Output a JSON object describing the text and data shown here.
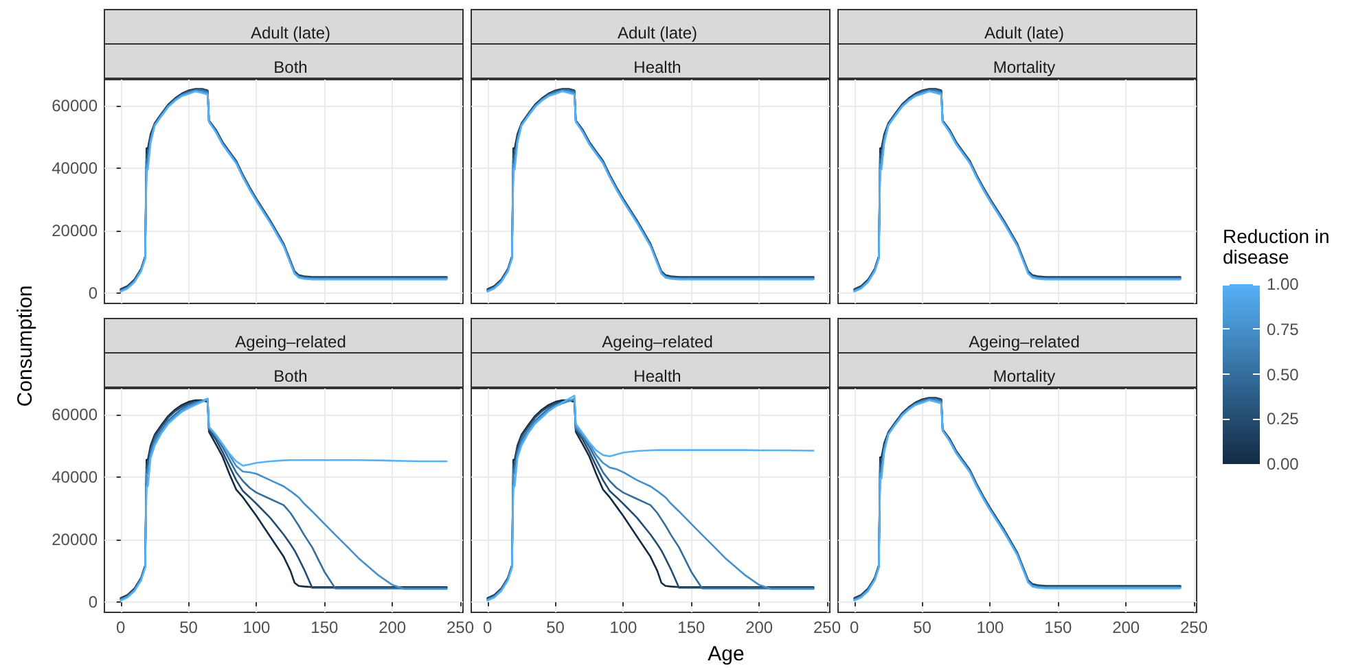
{
  "chart_data": [
    {
      "type": "line",
      "title": "Adult (late)",
      "subtitle": "Both",
      "x": [
        0,
        5,
        10,
        15,
        18,
        19,
        20,
        22,
        25,
        30,
        35,
        40,
        45,
        50,
        55,
        60,
        64,
        65,
        70,
        75,
        80,
        85,
        90,
        95,
        100,
        110,
        120,
        125,
        128,
        131,
        135,
        141,
        150,
        158,
        165,
        175,
        190,
        200,
        209,
        220,
        240
      ],
      "xlim": [
        -12,
        252
      ],
      "xticks": [
        0,
        50,
        100,
        150,
        200,
        250
      ],
      "ylim": [
        -3250,
        68250
      ],
      "yticks": [
        0,
        20000,
        40000,
        60000
      ],
      "grid": true,
      "tick_labels": "y",
      "ylabel": "Consumption",
      "series": [
        {
          "color": "#132B43",
          "values": [
            1300,
            2300,
            4300,
            7800,
            11800,
            46300,
            46300,
            50800,
            54300,
            57400,
            60300,
            62300,
            63800,
            64800,
            65300,
            65300,
            64800,
            55200,
            52300,
            48300,
            45300,
            42300,
            37800,
            33800,
            30100,
            23300,
            15800,
            10300,
            7000,
            5800,
            5400,
            5200,
            5200,
            5200,
            5200,
            5200,
            5200,
            5200,
            5200,
            5200,
            5200
          ]
        },
        {
          "color": "#244C70",
          "values": [
            1100,
            2100,
            4100,
            7600,
            11600,
            44600,
            44600,
            50100,
            54100,
            57200,
            60100,
            62100,
            63600,
            64600,
            65100,
            65100,
            64600,
            55000,
            52100,
            48100,
            45100,
            42100,
            37600,
            33600,
            29900,
            23100,
            15600,
            10100,
            6800,
            5600,
            5200,
            5000,
            5000,
            5000,
            5000,
            5000,
            5000,
            5000,
            5000,
            5000,
            5000
          ]
        },
        {
          "color": "#346E9D",
          "values": [
            900,
            1900,
            3900,
            7400,
            11400,
            42900,
            42900,
            49400,
            53900,
            57000,
            59900,
            61900,
            63400,
            64400,
            64900,
            64900,
            64400,
            54800,
            51900,
            47900,
            44900,
            41900,
            37400,
            33400,
            29700,
            22900,
            15400,
            9900,
            6600,
            5400,
            5000,
            4800,
            4800,
            4800,
            4800,
            4800,
            4800,
            4800,
            4800,
            4800,
            4800
          ]
        },
        {
          "color": "#4590CA",
          "values": [
            700,
            1700,
            3700,
            7200,
            11200,
            41200,
            41200,
            48700,
            53700,
            56800,
            59700,
            61700,
            63200,
            64000,
            64700,
            64400,
            63900,
            54800,
            51700,
            47700,
            44700,
            41700,
            37200,
            33200,
            29500,
            22700,
            15200,
            9700,
            6400,
            5200,
            4800,
            4600,
            4600,
            4600,
            4600,
            4600,
            4600,
            4600,
            4600,
            4600,
            4600
          ]
        },
        {
          "color": "#56B1F7",
          "values": [
            500,
            1500,
            3500,
            7000,
            11000,
            39500,
            39500,
            48000,
            53500,
            56600,
            59500,
            61500,
            63000,
            63700,
            64500,
            64000,
            63500,
            54800,
            51500,
            47500,
            44500,
            41500,
            37000,
            33000,
            29300,
            22500,
            15000,
            9500,
            6200,
            5000,
            4600,
            4400,
            4400,
            4400,
            4400,
            4400,
            4400,
            4400,
            4400,
            4400,
            4400
          ]
        }
      ]
    },
    {
      "type": "line",
      "title": "Adult (late)",
      "subtitle": "Health",
      "x": [
        0,
        5,
        10,
        15,
        18,
        19,
        20,
        22,
        25,
        30,
        35,
        40,
        45,
        50,
        55,
        60,
        64,
        65,
        70,
        75,
        80,
        85,
        90,
        95,
        100,
        110,
        120,
        125,
        128,
        131,
        135,
        141,
        150,
        158,
        165,
        175,
        190,
        200,
        209,
        220,
        240
      ],
      "xlim": [
        -12,
        252
      ],
      "xticks": [
        0,
        50,
        100,
        150,
        200,
        250
      ],
      "ylim": [
        -3250,
        68250
      ],
      "yticks": [
        0,
        20000,
        40000,
        60000
      ],
      "grid": true,
      "tick_labels": false,
      "series": [
        {
          "color": "#132B43",
          "values": [
            1300,
            2300,
            4300,
            7800,
            11800,
            46300,
            46300,
            50800,
            54300,
            57400,
            60300,
            62300,
            63800,
            64800,
            65300,
            65300,
            64800,
            55200,
            52300,
            48300,
            45300,
            42300,
            37800,
            33800,
            30100,
            23300,
            15800,
            10300,
            7000,
            5800,
            5400,
            5200,
            5200,
            5200,
            5200,
            5200,
            5200,
            5200,
            5200,
            5200,
            5200
          ]
        },
        {
          "color": "#244C70",
          "values": [
            1100,
            2100,
            4100,
            7600,
            11600,
            44600,
            44600,
            50100,
            54100,
            57200,
            60100,
            62100,
            63600,
            64600,
            65100,
            65100,
            64600,
            55000,
            52100,
            48100,
            45100,
            42100,
            37600,
            33600,
            29900,
            23100,
            15600,
            10100,
            6800,
            5600,
            5200,
            5000,
            5000,
            5000,
            5000,
            5000,
            5000,
            5000,
            5000,
            5000,
            5000
          ]
        },
        {
          "color": "#346E9D",
          "values": [
            900,
            1900,
            3900,
            7400,
            11400,
            42900,
            42900,
            49400,
            53900,
            57000,
            59900,
            61900,
            63400,
            64400,
            64900,
            64900,
            64400,
            54800,
            51900,
            47900,
            44900,
            41900,
            37400,
            33400,
            29700,
            22900,
            15400,
            9900,
            6600,
            5400,
            5000,
            4800,
            4800,
            4800,
            4800,
            4800,
            4800,
            4800,
            4800,
            4800,
            4800
          ]
        },
        {
          "color": "#4590CA",
          "values": [
            700,
            1700,
            3700,
            7200,
            11200,
            41200,
            41200,
            48700,
            53700,
            56800,
            59700,
            61700,
            63200,
            64000,
            64700,
            64400,
            63900,
            54800,
            51700,
            47700,
            44700,
            41700,
            37200,
            33200,
            29500,
            22700,
            15200,
            9700,
            6400,
            5200,
            4800,
            4600,
            4600,
            4600,
            4600,
            4600,
            4600,
            4600,
            4600,
            4600,
            4600
          ]
        },
        {
          "color": "#56B1F7",
          "values": [
            500,
            1500,
            3500,
            7000,
            11000,
            39500,
            39500,
            48000,
            53500,
            56600,
            59500,
            61500,
            63000,
            63700,
            64500,
            64000,
            63500,
            54800,
            51500,
            47500,
            44500,
            41500,
            37000,
            33000,
            29300,
            22500,
            15000,
            9500,
            6200,
            5000,
            4600,
            4400,
            4400,
            4400,
            4400,
            4400,
            4400,
            4400,
            4400,
            4400,
            4400
          ]
        }
      ]
    },
    {
      "type": "line",
      "title": "Adult (late)",
      "subtitle": "Mortality",
      "x": [
        0,
        5,
        10,
        15,
        18,
        19,
        20,
        22,
        25,
        30,
        35,
        40,
        45,
        50,
        55,
        60,
        64,
        65,
        70,
        75,
        80,
        85,
        90,
        95,
        100,
        110,
        120,
        125,
        128,
        131,
        135,
        141,
        150,
        158,
        165,
        175,
        190,
        200,
        209,
        220,
        240
      ],
      "xlim": [
        -12,
        252
      ],
      "xticks": [
        0,
        50,
        100,
        150,
        200,
        250
      ],
      "ylim": [
        -3250,
        68250
      ],
      "yticks": [
        0,
        20000,
        40000,
        60000
      ],
      "grid": true,
      "tick_labels": false,
      "clabel": "Reduction in disease",
      "clim": [
        0,
        1
      ],
      "cticks": [
        {
          "value": 0,
          "label": "0.00"
        },
        {
          "value": 0.25,
          "label": "0.25"
        },
        {
          "value": 0.5,
          "label": "0.50"
        },
        {
          "value": 0.75,
          "label": "0.75"
        },
        {
          "value": 1,
          "label": "1.00"
        }
      ],
      "series": [
        {
          "color": "#132B43",
          "values": [
            1300,
            2300,
            4300,
            7800,
            11800,
            46300,
            46300,
            50800,
            54300,
            57400,
            60300,
            62300,
            63800,
            64800,
            65300,
            65300,
            64800,
            55200,
            52300,
            48300,
            45300,
            42300,
            37800,
            33800,
            30100,
            23300,
            15800,
            10300,
            7000,
            5800,
            5400,
            5200,
            5200,
            5200,
            5200,
            5200,
            5200,
            5200,
            5200,
            5200,
            5200
          ]
        },
        {
          "color": "#244C70",
          "values": [
            1100,
            2100,
            4100,
            7600,
            11600,
            44600,
            44600,
            50100,
            54100,
            57200,
            60100,
            62100,
            63600,
            64600,
            65100,
            65100,
            64600,
            55000,
            52100,
            48100,
            45100,
            42100,
            37600,
            33600,
            29900,
            23100,
            15600,
            10100,
            6800,
            5600,
            5200,
            5000,
            5000,
            5000,
            5000,
            5000,
            5000,
            5000,
            5000,
            5000,
            5000
          ]
        },
        {
          "color": "#346E9D",
          "values": [
            900,
            1900,
            3900,
            7400,
            11400,
            42900,
            42900,
            49400,
            53900,
            57000,
            59900,
            61900,
            63400,
            64400,
            64900,
            64900,
            64400,
            54800,
            51900,
            47900,
            44900,
            41900,
            37400,
            33400,
            29700,
            22900,
            15400,
            9900,
            6600,
            5400,
            5000,
            4800,
            4800,
            4800,
            4800,
            4800,
            4800,
            4800,
            4800,
            4800,
            4800
          ]
        },
        {
          "color": "#4590CA",
          "values": [
            700,
            1700,
            3700,
            7200,
            11200,
            41200,
            41200,
            48700,
            53700,
            56800,
            59700,
            61700,
            63200,
            64000,
            64700,
            64400,
            63900,
            54800,
            51700,
            47700,
            44700,
            41700,
            37200,
            33200,
            29500,
            22700,
            15200,
            9700,
            6400,
            5200,
            4800,
            4600,
            4600,
            4600,
            4600,
            4600,
            4600,
            4600,
            4600,
            4600,
            4600
          ]
        },
        {
          "color": "#56B1F7",
          "values": [
            500,
            1500,
            3500,
            7000,
            11000,
            39500,
            39500,
            48000,
            53500,
            56600,
            59500,
            61500,
            63000,
            63700,
            64500,
            64000,
            63500,
            54800,
            51500,
            47500,
            44500,
            41500,
            37000,
            33000,
            29300,
            22500,
            15000,
            9500,
            6200,
            5000,
            4600,
            4400,
            4400,
            4400,
            4400,
            4400,
            4400,
            4400,
            4400,
            4400,
            4400
          ]
        }
      ]
    },
    {
      "type": "line",
      "title": "Ageing–related",
      "subtitle": "Both",
      "x": [
        0,
        5,
        10,
        15,
        18,
        19,
        20,
        22,
        25,
        30,
        35,
        40,
        45,
        50,
        55,
        60,
        64,
        65,
        70,
        75,
        80,
        85,
        90,
        95,
        100,
        110,
        120,
        125,
        128,
        131,
        135,
        141,
        150,
        158,
        165,
        175,
        190,
        200,
        209,
        220,
        240
      ],
      "xlim": [
        -12,
        252
      ],
      "xticks": [
        0,
        50,
        100,
        150,
        200,
        250
      ],
      "ylim": [
        -3250,
        68250
      ],
      "yticks": [
        0,
        20000,
        40000,
        60000
      ],
      "grid": true,
      "series": [
        {
          "color": "#132B43",
          "values": [
            1300,
            2300,
            4300,
            7800,
            11800,
            45500,
            45500,
            50000,
            53500,
            56600,
            59500,
            61500,
            63000,
            64000,
            64500,
            64500,
            64000,
            54400,
            50500,
            46500,
            41000,
            36000,
            33500,
            30500,
            27500,
            21000,
            14500,
            10000,
            6200,
            5200,
            5000,
            4800,
            4800,
            4800,
            4800,
            4800,
            4800,
            4800,
            4800,
            4800,
            4800
          ]
        },
        {
          "color": "#244C70",
          "values": [
            1100,
            2100,
            4100,
            7600,
            11600,
            44000,
            44000,
            49000,
            53000,
            56000,
            59000,
            61000,
            62500,
            63500,
            64000,
            64300,
            64500,
            55000,
            52000,
            48000,
            43500,
            39000,
            35500,
            33500,
            31400,
            27000,
            21600,
            18500,
            16500,
            14000,
            10500,
            4600,
            4600,
            4600,
            4600,
            4600,
            4600,
            4600,
            4600,
            4600,
            4600
          ]
        },
        {
          "color": "#346E9D",
          "values": [
            900,
            1900,
            3900,
            7400,
            11400,
            42500,
            42500,
            48000,
            52000,
            55000,
            58000,
            60000,
            61800,
            63000,
            63800,
            64300,
            64800,
            55500,
            53000,
            49500,
            45500,
            41500,
            38700,
            36500,
            35000,
            33000,
            31000,
            28500,
            26500,
            24500,
            21500,
            17500,
            9700,
            4400,
            4400,
            4400,
            4400,
            4400,
            4400,
            4400,
            4400
          ]
        },
        {
          "color": "#4590CA",
          "values": [
            700,
            1700,
            3700,
            7200,
            11200,
            41000,
            41000,
            47000,
            51000,
            54500,
            57500,
            59500,
            61300,
            62600,
            63500,
            64300,
            65000,
            56000,
            53500,
            50500,
            47000,
            43500,
            41700,
            41500,
            41000,
            39000,
            37000,
            35500,
            34500,
            33500,
            31500,
            29000,
            25000,
            21500,
            18500,
            14100,
            8500,
            5500,
            4200,
            4200,
            4200
          ]
        },
        {
          "color": "#56B1F7",
          "values": [
            500,
            1500,
            3500,
            7000,
            11000,
            37000,
            37000,
            46000,
            50000,
            54000,
            57000,
            59000,
            60800,
            62000,
            63000,
            64000,
            65000,
            56000,
            53500,
            50500,
            47500,
            45000,
            43600,
            44000,
            44500,
            45000,
            45300,
            45400,
            45400,
            45400,
            45400,
            45400,
            45400,
            45400,
            45400,
            45400,
            45300,
            45200,
            45100,
            45000,
            45000
          ]
        }
      ]
    },
    {
      "type": "line",
      "title": "Ageing–related",
      "subtitle": "Health",
      "x": [
        0,
        5,
        10,
        15,
        18,
        19,
        20,
        22,
        25,
        30,
        35,
        40,
        45,
        50,
        55,
        60,
        64,
        65,
        70,
        75,
        80,
        85,
        90,
        95,
        100,
        110,
        120,
        125,
        128,
        131,
        135,
        141,
        150,
        158,
        165,
        175,
        190,
        200,
        209,
        220,
        240
      ],
      "xlim": [
        -12,
        252
      ],
      "xticks": [
        0,
        50,
        100,
        150,
        200,
        250
      ],
      "ylim": [
        -3250,
        68250
      ],
      "yticks": [
        0,
        20000,
        40000,
        60000
      ],
      "grid": true,
      "tick_labels": "x",
      "xlabel": "Age",
      "series": [
        {
          "color": "#132B43",
          "values": [
            1300,
            2300,
            4300,
            7800,
            11800,
            45500,
            45500,
            50000,
            53500,
            56600,
            59500,
            61500,
            63000,
            64000,
            64500,
            64500,
            64000,
            54400,
            50500,
            46500,
            41000,
            36000,
            33500,
            30500,
            27500,
            21000,
            14500,
            10000,
            6200,
            5200,
            5000,
            4800,
            4800,
            4800,
            4800,
            4800,
            4800,
            4800,
            4800,
            4800,
            4800
          ]
        },
        {
          "color": "#244C70",
          "values": [
            1100,
            2100,
            4100,
            7600,
            11600,
            44000,
            44000,
            49000,
            53000,
            56000,
            59000,
            61000,
            62500,
            63500,
            64000,
            64300,
            64500,
            55000,
            52000,
            48000,
            43500,
            39000,
            35500,
            33500,
            31400,
            27000,
            21600,
            18500,
            16500,
            14000,
            10500,
            4600,
            4600,
            4600,
            4600,
            4600,
            4600,
            4600,
            4600,
            4600,
            4600
          ]
        },
        {
          "color": "#346E9D",
          "values": [
            900,
            1900,
            3900,
            7400,
            11400,
            42500,
            42500,
            48000,
            52000,
            55000,
            58000,
            60000,
            61800,
            63000,
            63800,
            64300,
            64800,
            55500,
            53000,
            49500,
            45500,
            41500,
            38700,
            36500,
            35000,
            33000,
            31000,
            28500,
            26500,
            24500,
            21500,
            17500,
            9700,
            4400,
            4400,
            4400,
            4400,
            4400,
            4400,
            4400,
            4400
          ]
        },
        {
          "color": "#4590CA",
          "values": [
            700,
            1700,
            3700,
            7200,
            11200,
            41000,
            41000,
            47000,
            51000,
            54500,
            57500,
            59500,
            61300,
            62600,
            63500,
            64300,
            65000,
            56000,
            53500,
            50500,
            47000,
            44500,
            43000,
            42500,
            41500,
            39000,
            37000,
            35500,
            34500,
            33500,
            31500,
            29000,
            25000,
            21500,
            18500,
            14100,
            8500,
            5500,
            4200,
            4200,
            4200
          ]
        },
        {
          "color": "#56B1F7",
          "values": [
            500,
            1500,
            3500,
            7000,
            11000,
            37000,
            37000,
            46000,
            50000,
            54000,
            57000,
            59000,
            61000,
            62500,
            63800,
            65000,
            66000,
            57000,
            54000,
            51000,
            48500,
            47000,
            46600,
            47200,
            47800,
            48300,
            48500,
            48600,
            48600,
            48600,
            48600,
            48600,
            48600,
            48600,
            48600,
            48600,
            48600,
            48500,
            48500,
            48500,
            48400
          ]
        }
      ]
    },
    {
      "type": "line",
      "title": "Ageing–related",
      "subtitle": "Mortality",
      "x": [
        0,
        5,
        10,
        15,
        18,
        19,
        20,
        22,
        25,
        30,
        35,
        40,
        45,
        50,
        55,
        60,
        64,
        65,
        70,
        75,
        80,
        85,
        90,
        95,
        100,
        110,
        120,
        125,
        128,
        131,
        135,
        141,
        150,
        158,
        165,
        175,
        190,
        200,
        209,
        220,
        240
      ],
      "xlim": [
        -12,
        252
      ],
      "xticks": [
        0,
        50,
        100,
        150,
        200,
        250
      ],
      "ylim": [
        -3250,
        68250
      ],
      "yticks": [
        0,
        20000,
        40000,
        60000
      ],
      "grid": true,
      "tick_labels": "x",
      "series": [
        {
          "color": "#132B43",
          "values": [
            1300,
            2300,
            4300,
            7800,
            11800,
            46300,
            46300,
            50800,
            54300,
            57400,
            60300,
            62300,
            63800,
            64800,
            65300,
            65300,
            64800,
            55200,
            52300,
            48300,
            45300,
            42300,
            37800,
            33800,
            30100,
            23300,
            15800,
            10300,
            7000,
            5800,
            5400,
            5200,
            5200,
            5200,
            5200,
            5200,
            5200,
            5200,
            5200,
            5200,
            5200
          ]
        },
        {
          "color": "#244C70",
          "values": [
            1100,
            2100,
            4100,
            7600,
            11600,
            44600,
            44600,
            50100,
            54100,
            57200,
            60100,
            62100,
            63600,
            64600,
            65100,
            65100,
            64600,
            55000,
            52100,
            48100,
            45100,
            42100,
            37600,
            33600,
            29900,
            23100,
            15600,
            10100,
            6800,
            5600,
            5200,
            5000,
            5000,
            5000,
            5000,
            5000,
            5000,
            5000,
            5000,
            5000,
            5000
          ]
        },
        {
          "color": "#346E9D",
          "values": [
            900,
            1900,
            3900,
            7400,
            11400,
            42900,
            42900,
            49400,
            53900,
            57000,
            59900,
            61900,
            63400,
            64400,
            64900,
            64900,
            64400,
            54800,
            51900,
            47900,
            44900,
            41900,
            37400,
            33400,
            29700,
            22900,
            15400,
            9900,
            6600,
            5400,
            5000,
            4800,
            4800,
            4800,
            4800,
            4800,
            4800,
            4800,
            4800,
            4800,
            4800
          ]
        },
        {
          "color": "#4590CA",
          "values": [
            700,
            1700,
            3700,
            7200,
            11200,
            41200,
            41200,
            48700,
            53700,
            56800,
            59700,
            61700,
            63200,
            64000,
            64700,
            64400,
            63900,
            54800,
            51700,
            47700,
            44700,
            41700,
            37200,
            33200,
            29500,
            22700,
            15200,
            9700,
            6400,
            5200,
            4800,
            4600,
            4600,
            4600,
            4600,
            4600,
            4600,
            4600,
            4600,
            4600,
            4600
          ]
        },
        {
          "color": "#56B1F7",
          "values": [
            500,
            1500,
            3500,
            7000,
            11000,
            39500,
            39500,
            48000,
            53500,
            56600,
            59500,
            61500,
            63000,
            63700,
            64500,
            64000,
            63500,
            54800,
            51500,
            47500,
            44500,
            41500,
            37000,
            33000,
            29300,
            22500,
            15000,
            9500,
            6200,
            5000,
            4600,
            4400,
            4400,
            4400,
            4400,
            4400,
            4400,
            4400,
            4400,
            4400,
            4400
          ]
        }
      ]
    }
  ]
}
